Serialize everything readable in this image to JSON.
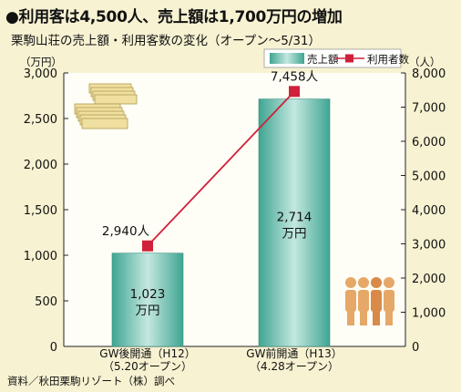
{
  "title": "●利用客は4,500人、売上額は1,700万円の増加",
  "subtitle": "栗駒山荘の売上額・利用客数の変化（オープン～5/31）",
  "source": "資料／秋田栗駒リゾート（株）調べ",
  "colors": {
    "background": "#f7f2d2",
    "bar_top": "#c4e8e0",
    "bar_bottom": "#3fa592",
    "line": "#d0203a",
    "marker": "#d0203a",
    "people_icon": "#e6a868",
    "money_icon": "#efdfa0"
  },
  "icons": [
    "money-stack-icon",
    "people-icon"
  ],
  "chart_data": {
    "type": "bar",
    "categories": [
      [
        "GW後開通（H12）",
        "（5.20オープン）"
      ],
      [
        "GW前開通（H13）",
        "（4.28オープン）"
      ]
    ],
    "series": [
      {
        "name": "売上額",
        "type": "bar",
        "axis": "left",
        "values": [
          1023,
          2714
        ],
        "labels": [
          [
            "1,023",
            "万円"
          ],
          [
            "2,714",
            "万円"
          ]
        ]
      },
      {
        "name": "利用者数",
        "type": "line",
        "axis": "right",
        "values": [
          2940,
          7458
        ],
        "labels": [
          "2,940人",
          "7,458人"
        ]
      }
    ],
    "y_left": {
      "unit": "（万円）",
      "ylim": [
        0,
        3000
      ],
      "ticks": [
        0,
        500,
        1000,
        1500,
        2000,
        2500,
        3000
      ],
      "tick_labels": [
        "0",
        "500",
        "1,000",
        "1,500",
        "2,000",
        "2,500",
        "3,000"
      ]
    },
    "y_right": {
      "unit": "（人）",
      "ylim": [
        0,
        8000
      ],
      "ticks": [
        0,
        1000,
        2000,
        3000,
        4000,
        5000,
        6000,
        7000,
        8000
      ],
      "tick_labels": [
        "0",
        "1,000",
        "2,000",
        "3,000",
        "4,000",
        "5,000",
        "6,000",
        "7,000",
        "8,000"
      ]
    },
    "legend": {
      "position": "top-right",
      "items": [
        "売上額",
        "利用者数"
      ]
    },
    "grid": false
  }
}
